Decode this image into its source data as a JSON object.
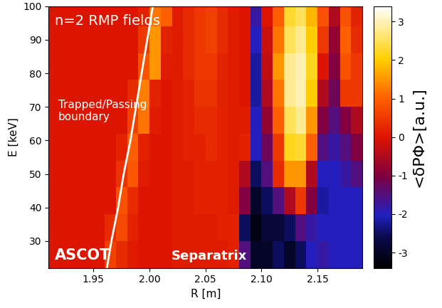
{
  "chart_data": {
    "type": "heatmap",
    "x_label": "R [m]",
    "y_label": "E [keV]",
    "xlim": [
      1.91,
      2.19
    ],
    "xticks": [
      1.95,
      {
        "value": 2.0,
        "label": "2.00"
      },
      2.05,
      {
        "value": 2.1,
        "label": "2.10"
      },
      2.15
    ],
    "ylim": [
      22,
      100
    ],
    "yticks": [
      30,
      40,
      50,
      60,
      70,
      80,
      90,
      100
    ],
    "x": [
      1.915,
      1.925,
      1.935,
      1.945,
      1.955,
      1.965,
      1.975,
      1.985,
      1.995,
      2.005,
      2.015,
      2.025,
      2.035,
      2.045,
      2.055,
      2.065,
      2.075,
      2.085,
      2.095,
      2.105,
      2.115,
      2.125,
      2.135,
      2.145,
      2.155,
      2.165,
      2.175,
      2.185
    ],
    "y": [
      26,
      34,
      42,
      50,
      58,
      66,
      74,
      82,
      90,
      98
    ],
    "cells": [
      [
        0,
        0,
        0,
        0,
        0,
        0.6,
        0.3,
        0.1,
        0,
        0,
        0,
        0.1,
        0.1,
        0.1,
        0.1,
        0.1,
        0.2,
        -1.5,
        -3,
        -3,
        -2.5,
        -3,
        -2.5,
        -2,
        -1.8,
        -2,
        -2,
        -2
      ],
      [
        0,
        0,
        0,
        0,
        0,
        0.3,
        0.7,
        0.2,
        0,
        0,
        0,
        0.1,
        0.1,
        0.1,
        0.1,
        0.2,
        0.2,
        -2.5,
        -3.2,
        -2.8,
        -2.8,
        -2.5,
        -1.5,
        -1.8,
        -2,
        -2,
        -2,
        -2
      ],
      [
        0,
        0,
        0,
        0,
        0,
        0,
        0.8,
        0.3,
        0,
        0,
        0,
        0.1,
        0.1,
        0.2,
        0.2,
        0.2,
        0.1,
        -1,
        -3,
        -2.5,
        -1.5,
        -0.5,
        0.5,
        -1,
        -2.2,
        -2,
        -2,
        -2
      ],
      [
        0,
        0,
        0,
        0,
        0,
        0,
        0.4,
        0.9,
        0.1,
        0,
        0,
        0.1,
        0.1,
        0.2,
        0.2,
        0.2,
        0.1,
        -0.5,
        -2.5,
        -1.5,
        0.3,
        1.5,
        1.5,
        -0.5,
        -2,
        -2,
        -1.8,
        -1.5
      ],
      [
        0,
        0,
        0,
        0,
        0,
        0,
        0.2,
        1.0,
        0.2,
        0,
        0,
        0.1,
        0.2,
        0.2,
        0.3,
        0.2,
        0.1,
        0.2,
        -2,
        -1.2,
        0.5,
        2.2,
        2.3,
        1.0,
        -1.5,
        -1.8,
        -1.5,
        -1
      ],
      [
        0,
        0,
        0,
        0,
        0,
        0,
        0,
        0.6,
        1.2,
        0.1,
        0,
        0.1,
        0.2,
        0.3,
        0.3,
        0.2,
        0.1,
        0.1,
        -2,
        -0.8,
        1.0,
        2.5,
        2.8,
        1.5,
        -1,
        -1.5,
        -1,
        -0.5
      ],
      [
        0,
        0,
        0,
        0,
        0,
        0,
        0,
        0.3,
        1.3,
        0.2,
        0,
        0.1,
        0.2,
        0.4,
        0.4,
        0.2,
        0.1,
        0,
        -2.2,
        -0.5,
        1.2,
        2.8,
        3.0,
        2.0,
        -0.5,
        -1.2,
        0.5,
        0.5
      ],
      [
        0,
        0,
        0,
        0,
        0,
        0,
        0,
        0,
        0.8,
        1.5,
        0.1,
        0.1,
        0.3,
        0.5,
        0.5,
        0.2,
        0.1,
        0,
        -2.2,
        -0.3,
        1.5,
        2.8,
        3.0,
        2.2,
        0,
        -1,
        0.8,
        0.5
      ],
      [
        0,
        0,
        0,
        0,
        0,
        0,
        0,
        0,
        0.5,
        1.5,
        0.2,
        0.1,
        0.3,
        0.5,
        0.6,
        0.3,
        0.1,
        0,
        -2,
        -0.2,
        1.2,
        2.5,
        2.8,
        2.0,
        0.5,
        -0.8,
        1.0,
        0.3
      ],
      [
        0,
        0,
        0,
        0,
        0,
        0,
        0,
        0,
        0.2,
        1.2,
        1.0,
        0.1,
        0.3,
        0.5,
        0.6,
        0.3,
        0.1,
        0,
        -1.8,
        0,
        1.0,
        2.3,
        2.5,
        1.8,
        0.8,
        -0.5,
        0.8,
        0.2
      ]
    ],
    "colorbar_label": "<δPΦ>[a.u.]",
    "colorbar_range": [
      -3.4,
      3.4
    ],
    "colorbar_ticks": [
      -3,
      -2,
      -1,
      0,
      1,
      2,
      3
    ],
    "boundary": {
      "R": [
        1.962,
        1.966,
        1.972,
        1.977,
        1.983,
        1.988,
        1.993,
        1.998,
        2.003
      ],
      "E": [
        22,
        30,
        40,
        50,
        60,
        70,
        80,
        90,
        100
      ],
      "color": "#ffffff"
    },
    "annotations": [
      "n=2 RMP fields",
      "Trapped/Passing\nboundary",
      "ASCOT",
      "Separatrix"
    ]
  }
}
